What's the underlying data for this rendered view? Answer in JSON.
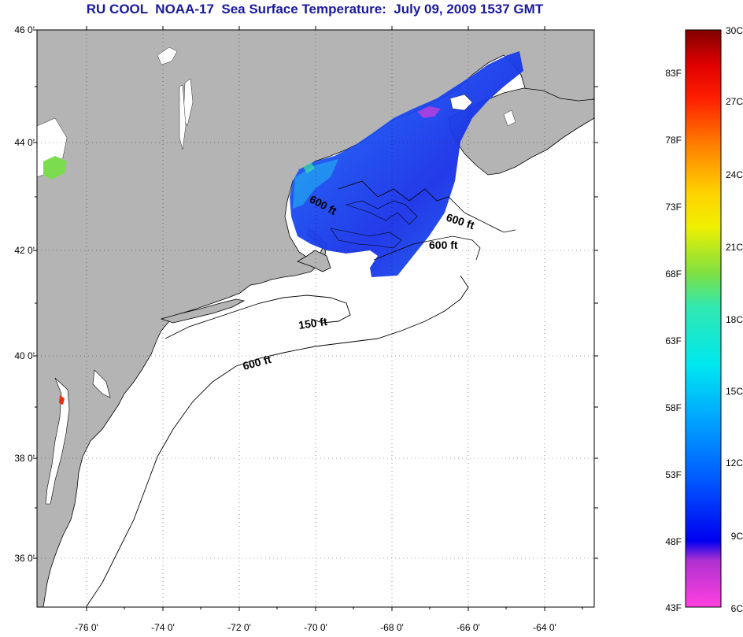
{
  "title": "RU COOL  NOAA-17  Sea Surface Temperature:  July 09, 2009 1537 GMT",
  "latitude_ticks": [
    "46 0'",
    "44 0'",
    "42 0'",
    "40 0'",
    "38 0'",
    "36 0'"
  ],
  "longitude_ticks": [
    "-76 0'",
    "-74 0'",
    "-72 0'",
    "-70 0'",
    "-68 0'",
    "-66 0'",
    "-64 0'"
  ],
  "colorbar": {
    "fahrenheit_labels": [
      "83F",
      "78F",
      "73F",
      "68F",
      "63F",
      "58F",
      "53F",
      "48F",
      "43F"
    ],
    "celsius_labels": [
      "30C",
      "27C",
      "24C",
      "21C",
      "18C",
      "15C",
      "12C",
      "9C",
      "6C"
    ]
  },
  "contour_labels": [
    "600 ft",
    "600 ft",
    "600 ft",
    "150 ft",
    "600 ft"
  ],
  "colors": {
    "land": "#b4b4b4",
    "ocean": "#ffffff",
    "title": "#1a1aa0",
    "sst_cold": "#1a3cf0",
    "sst_mid": "#1e8cf0"
  }
}
